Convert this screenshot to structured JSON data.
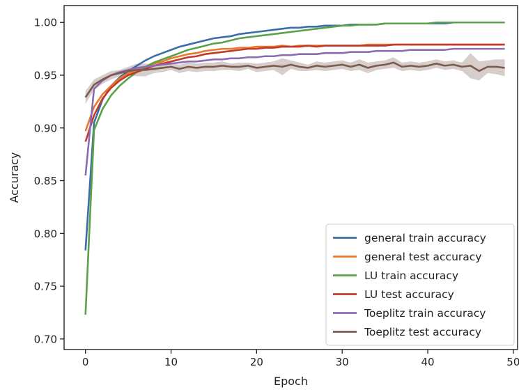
{
  "chart_data": {
    "type": "line",
    "title": "",
    "xlabel": "Epoch",
    "ylabel": "Accuracy",
    "xlim": [
      -2.5,
      50.5
    ],
    "ylim": [
      0.69,
      1.016
    ],
    "xticks": [
      0,
      10,
      20,
      30,
      40,
      50
    ],
    "xtick_labels": [
      "0",
      "10",
      "20",
      "30",
      "40",
      "50"
    ],
    "yticks": [
      0.7,
      0.75,
      0.8,
      0.85,
      0.9,
      0.95,
      1.0
    ],
    "ytick_labels": [
      "0.70",
      "0.75",
      "0.80",
      "0.85",
      "0.90",
      "0.95",
      "1.00"
    ],
    "grid": false,
    "legend_position": "bottom-right",
    "x": [
      0,
      1,
      2,
      3,
      4,
      5,
      6,
      7,
      8,
      9,
      10,
      11,
      12,
      13,
      14,
      15,
      16,
      17,
      18,
      19,
      20,
      21,
      22,
      23,
      24,
      25,
      26,
      27,
      28,
      29,
      30,
      31,
      32,
      33,
      34,
      35,
      36,
      37,
      38,
      39,
      40,
      41,
      42,
      43,
      44,
      45,
      46,
      47,
      48,
      49
    ],
    "series": [
      {
        "name": "general train accuracy",
        "color": "#3b6ea8",
        "values": [
          0.784,
          0.905,
          0.927,
          0.94,
          0.948,
          0.954,
          0.959,
          0.964,
          0.968,
          0.971,
          0.974,
          0.977,
          0.979,
          0.981,
          0.983,
          0.985,
          0.986,
          0.987,
          0.989,
          0.99,
          0.991,
          0.992,
          0.993,
          0.994,
          0.995,
          0.995,
          0.996,
          0.996,
          0.997,
          0.997,
          0.997,
          0.998,
          0.998,
          0.998,
          0.998,
          0.999,
          0.999,
          0.999,
          0.999,
          0.999,
          0.999,
          0.999,
          0.999,
          1.0,
          1.0,
          1.0,
          1.0,
          1.0,
          1.0,
          1.0
        ]
      },
      {
        "name": "general test accuracy",
        "color": "#e8792b",
        "values": [
          0.897,
          0.92,
          0.932,
          0.94,
          0.947,
          0.952,
          0.955,
          0.958,
          0.961,
          0.963,
          0.966,
          0.968,
          0.97,
          0.971,
          0.973,
          0.974,
          0.975,
          0.975,
          0.976,
          0.976,
          0.977,
          0.977,
          0.977,
          0.978,
          0.977,
          0.978,
          0.978,
          0.978,
          0.978,
          0.978,
          0.978,
          0.978,
          0.978,
          0.979,
          0.979,
          0.979,
          0.979,
          0.979,
          0.979,
          0.979,
          0.979,
          0.979,
          0.979,
          0.979,
          0.979,
          0.979,
          0.979,
          0.979,
          0.979,
          0.979
        ]
      },
      {
        "name": "LU train accuracy",
        "color": "#5aa14a",
        "values": [
          0.723,
          0.898,
          0.918,
          0.931,
          0.94,
          0.947,
          0.953,
          0.958,
          0.962,
          0.965,
          0.968,
          0.971,
          0.974,
          0.976,
          0.978,
          0.98,
          0.981,
          0.983,
          0.985,
          0.986,
          0.987,
          0.988,
          0.989,
          0.99,
          0.991,
          0.992,
          0.993,
          0.994,
          0.995,
          0.996,
          0.997,
          0.997,
          0.998,
          0.998,
          0.998,
          0.999,
          0.999,
          0.999,
          0.999,
          0.999,
          0.999,
          1.0,
          1.0,
          1.0,
          1.0,
          1.0,
          1.0,
          1.0,
          1.0,
          1.0
        ]
      },
      {
        "name": "LU test accuracy",
        "color": "#c23a2c",
        "values": [
          0.887,
          0.912,
          0.928,
          0.938,
          0.945,
          0.95,
          0.953,
          0.956,
          0.959,
          0.961,
          0.963,
          0.965,
          0.967,
          0.968,
          0.97,
          0.971,
          0.972,
          0.973,
          0.974,
          0.975,
          0.975,
          0.976,
          0.976,
          0.977,
          0.977,
          0.977,
          0.978,
          0.977,
          0.978,
          0.978,
          0.978,
          0.978,
          0.978,
          0.978,
          0.978,
          0.978,
          0.979,
          0.979,
          0.979,
          0.979,
          0.979,
          0.979,
          0.979,
          0.979,
          0.979,
          0.979,
          0.979,
          0.979,
          0.979,
          0.979
        ]
      },
      {
        "name": "Toeplitz train accuracy",
        "color": "#8a6bb5",
        "values": [
          0.855,
          0.937,
          0.945,
          0.95,
          0.953,
          0.955,
          0.957,
          0.958,
          0.959,
          0.96,
          0.961,
          0.962,
          0.963,
          0.963,
          0.964,
          0.965,
          0.965,
          0.966,
          0.966,
          0.967,
          0.967,
          0.968,
          0.968,
          0.969,
          0.969,
          0.97,
          0.97,
          0.97,
          0.971,
          0.971,
          0.971,
          0.972,
          0.972,
          0.972,
          0.973,
          0.973,
          0.973,
          0.973,
          0.974,
          0.974,
          0.974,
          0.974,
          0.974,
          0.975,
          0.975,
          0.975,
          0.975,
          0.975,
          0.975,
          0.975
        ]
      },
      {
        "name": "Toeplitz test accuracy",
        "color": "#7b5a4e",
        "values": [
          0.929,
          0.941,
          0.946,
          0.95,
          0.952,
          0.954,
          0.955,
          0.955,
          0.956,
          0.957,
          0.958,
          0.956,
          0.958,
          0.957,
          0.958,
          0.958,
          0.959,
          0.958,
          0.958,
          0.959,
          0.957,
          0.958,
          0.959,
          0.958,
          0.96,
          0.958,
          0.957,
          0.959,
          0.958,
          0.959,
          0.96,
          0.958,
          0.96,
          0.957,
          0.959,
          0.96,
          0.962,
          0.958,
          0.959,
          0.958,
          0.959,
          0.961,
          0.959,
          0.96,
          0.958,
          0.959,
          0.954,
          0.958,
          0.958,
          0.957
        ]
      }
    ],
    "band": {
      "series": "Toeplitz test accuracy",
      "color": "#7b5a4e",
      "opacity": 0.3,
      "half_width": [
        0.006,
        0.005,
        0.004,
        0.004,
        0.003,
        0.004,
        0.006,
        0.006,
        0.004,
        0.004,
        0.003,
        0.004,
        0.004,
        0.004,
        0.004,
        0.004,
        0.004,
        0.003,
        0.004,
        0.003,
        0.004,
        0.004,
        0.004,
        0.008,
        0.004,
        0.004,
        0.003,
        0.004,
        0.004,
        0.004,
        0.004,
        0.004,
        0.005,
        0.005,
        0.004,
        0.004,
        0.005,
        0.004,
        0.004,
        0.004,
        0.004,
        0.004,
        0.004,
        0.004,
        0.004,
        0.012,
        0.009,
        0.006,
        0.007,
        0.008
      ]
    }
  }
}
